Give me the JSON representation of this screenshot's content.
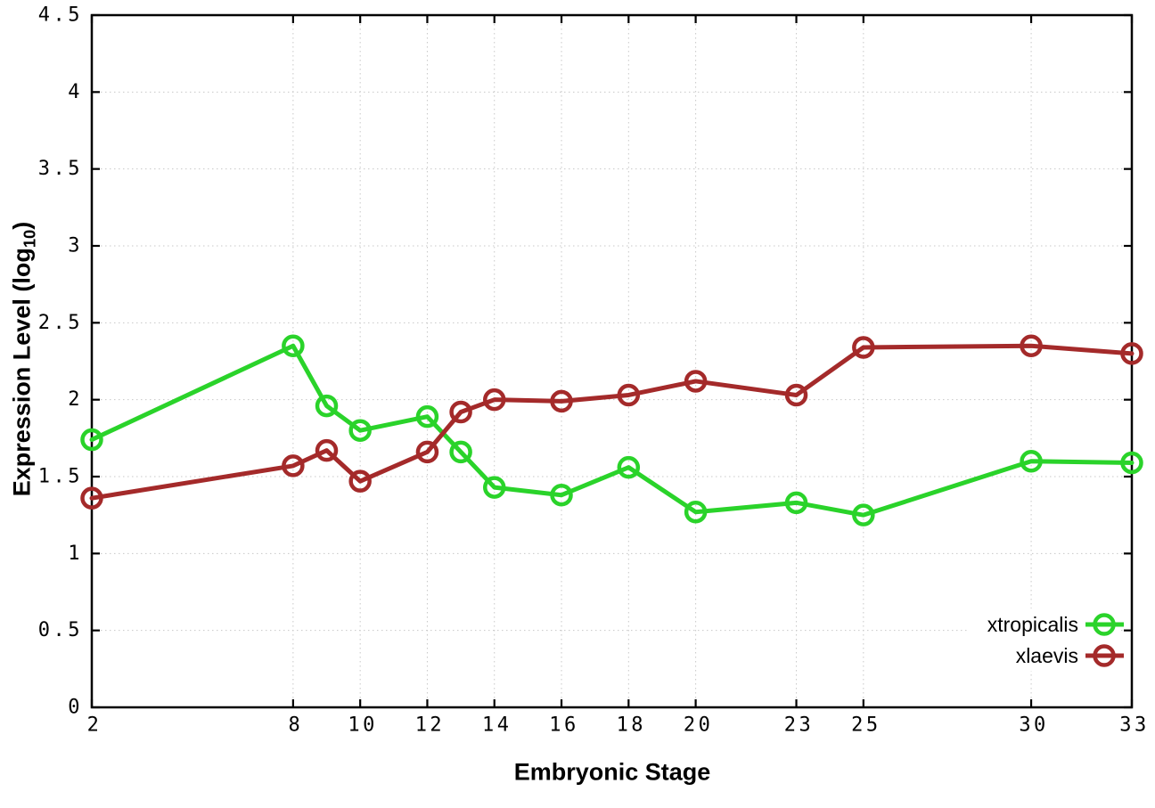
{
  "figure": {
    "x_axis_title": "Embryonic Stage",
    "y_axis_title": {
      "text": "Expression Level (log",
      "subscript": "10",
      "suffix": ")"
    },
    "background_color": "#ffffff",
    "axis_color": "#000000",
    "grid_color": "#c8c8c8"
  },
  "chart_data": {
    "type": "line",
    "title": "",
    "xlabel": "Embryonic Stage",
    "ylabel": "Expression Level (log10)",
    "xlim": [
      2,
      33
    ],
    "ylim": [
      0,
      4.5
    ],
    "grid": true,
    "legend_position": "inside-bottom-right",
    "xticks": {
      "values": [
        2,
        8,
        10,
        12,
        14,
        16,
        18,
        20,
        23,
        25,
        30,
        33
      ],
      "labels": [
        "2",
        "8",
        "10",
        "12",
        "14",
        "16",
        "18",
        "20",
        "23",
        "25",
        "30",
        "33"
      ]
    },
    "yticks": {
      "values": [
        0,
        0.5,
        1,
        1.5,
        2,
        2.5,
        3,
        3.5,
        4,
        4.5
      ],
      "labels": [
        "0",
        "0.5",
        "1",
        "1.5",
        "2",
        "2.5",
        "3",
        "3.5",
        "4",
        "4.5"
      ]
    },
    "x": [
      2,
      8,
      9,
      10,
      12,
      13,
      14,
      16,
      18,
      20,
      23,
      25,
      30,
      33
    ],
    "series": [
      {
        "name": "xtropicalis",
        "color": "#2ad32a",
        "values": [
          1.74,
          2.35,
          1.96,
          1.8,
          1.89,
          1.66,
          1.43,
          1.38,
          1.56,
          1.27,
          1.33,
          1.25,
          1.6,
          1.59
        ]
      },
      {
        "name": "xlaevis",
        "color": "#a42a2a",
        "values": [
          1.36,
          1.57,
          1.67,
          1.47,
          1.66,
          1.92,
          2.0,
          1.99,
          2.03,
          2.12,
          2.03,
          2.34,
          2.35,
          2.3
        ]
      }
    ]
  }
}
